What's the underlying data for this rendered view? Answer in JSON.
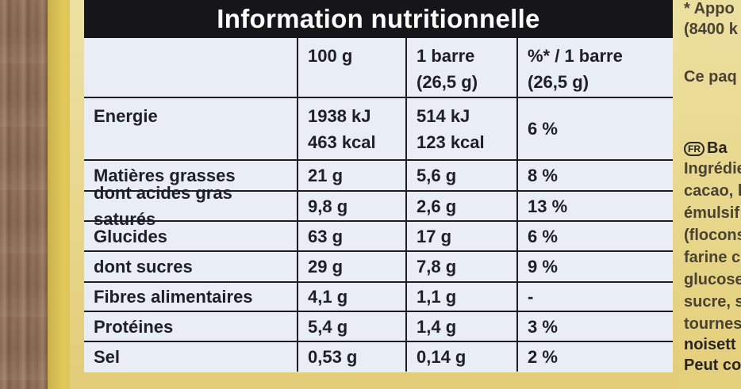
{
  "title": "Information nutritionnelle",
  "header": {
    "col_100g": "100 g",
    "col_barre_line1": "1 barre",
    "col_barre_line2": "(26,5 g)",
    "col_pct_line1": "%* / 1 barre",
    "col_pct_line2": "(26,5 g)"
  },
  "energy": {
    "label": "Energie",
    "per100_kj": "1938 kJ",
    "per100_kcal": "463 kcal",
    "perbar_kj": "514 kJ",
    "perbar_kcal": "123 kcal",
    "pct": "6 %"
  },
  "rows": [
    {
      "label": "Matières grasses",
      "per100": "21 g",
      "perbar": "5,6 g",
      "pct": "8 %"
    },
    {
      "label": "dont acides gras saturés",
      "per100": "9,8 g",
      "perbar": "2,6 g",
      "pct": "13 %"
    },
    {
      "label": "Glucides",
      "per100": "63 g",
      "perbar": "17 g",
      "pct": "6 %"
    },
    {
      "label": "dont sucres",
      "per100": "29 g",
      "perbar": "7,8 g",
      "pct": "9 %"
    },
    {
      "label": "Fibres alimentaires",
      "per100": "4,1 g",
      "perbar": "1,1 g",
      "pct": "-"
    },
    {
      "label": "Protéines",
      "per100": "5,4 g",
      "perbar": "1,4 g",
      "pct": "3 %"
    },
    {
      "label": "Sel",
      "per100": "0,53 g",
      "perbar": "0,14 g",
      "pct": "2 %"
    }
  ],
  "side": {
    "l1": "* Appo",
    "l2": "(8400 k",
    "l3": "Ce paq",
    "badge": "FR",
    "l4": "Ba",
    "l5": "Ingrédie",
    "l6": "cacao, l",
    "l7": "émulsif",
    "l8": "(flocons",
    "l9": "farine c",
    "l10": "glucose",
    "l11": "sucre, s",
    "l12": "tournes",
    "l13": "noisett",
    "l14": "Peut co"
  }
}
